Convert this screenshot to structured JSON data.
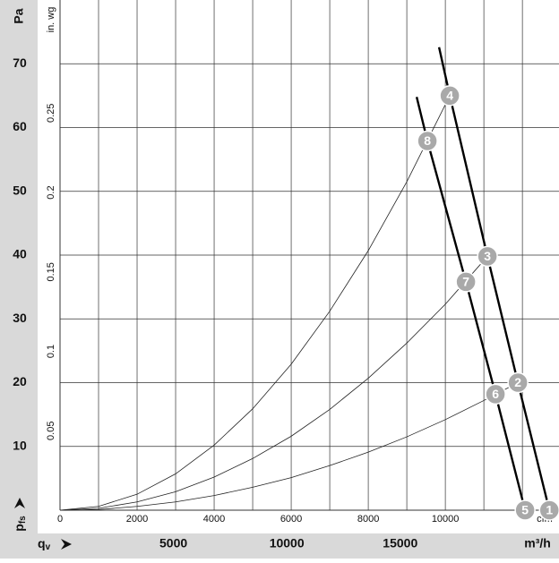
{
  "chart_data": {
    "type": "line",
    "y_label": "Pa",
    "y2_label": "in. wg",
    "y_symbol": "p",
    "y_symbol_sub": "fs",
    "x_symbol": "q",
    "x_symbol_sub": "v",
    "x_label": "cfm",
    "x2_label": "m³/h",
    "xlim": [
      0,
      12950
    ],
    "xticks": [
      0,
      2000,
      4000,
      6000,
      8000,
      10000
    ],
    "xgrid": [
      1000,
      2000,
      3000,
      4000,
      5000,
      6000,
      7000,
      8000,
      9000,
      10000,
      11000,
      12000
    ],
    "x2lim": [
      0,
      22000
    ],
    "x2ticks": [
      5000,
      10000,
      15000
    ],
    "ylim": [
      0,
      80
    ],
    "yticks": [
      10,
      20,
      30,
      40,
      50,
      60,
      70
    ],
    "y2lim": [
      0,
      0.3212
    ],
    "y2ticks": [
      0.05,
      0.1,
      0.15,
      0.2,
      0.25
    ],
    "grid": true,
    "series": [
      {
        "name": null,
        "role": "fan",
        "color": "#000000",
        "x": [
          9837,
          10116,
          11093,
          11884,
          12700
        ],
        "values": [
          72.6,
          65,
          39.8,
          20,
          0
        ]
      },
      {
        "name": null,
        "role": "fan",
        "color": "#000000",
        "x": [
          9256,
          9535,
          10535,
          11302,
          12070
        ],
        "values": [
          64.8,
          57.9,
          35.8,
          18.2,
          0
        ]
      },
      {
        "name": null,
        "role": "system",
        "color": "#222222",
        "x": [
          0,
          1000,
          2000,
          3000,
          4000,
          5000,
          6000,
          7000,
          8000,
          9000,
          10000,
          10116
        ],
        "values": [
          0,
          0.6,
          2.5,
          5.7,
          10.2,
          15.9,
          22.9,
          31.2,
          40.7,
          51.5,
          63.6,
          65
        ]
      },
      {
        "name": null,
        "role": "system",
        "color": "#222222",
        "x": [
          0,
          1000,
          2000,
          3000,
          4000,
          5000,
          6000,
          7000,
          8000,
          9000,
          10000,
          11093
        ],
        "values": [
          0,
          0.3,
          1.3,
          2.9,
          5.2,
          8.1,
          11.6,
          15.8,
          20.7,
          26.2,
          32.3,
          39.8
        ]
      },
      {
        "name": null,
        "role": "system",
        "color": "#222222",
        "x": [
          0,
          1000,
          2000,
          3000,
          4000,
          5000,
          6000,
          7000,
          8000,
          9000,
          10000,
          11000,
          11884
        ],
        "values": [
          0,
          0.1,
          0.6,
          1.3,
          2.3,
          3.6,
          5.1,
          7,
          9.1,
          11.5,
          14.2,
          17.2,
          20
        ]
      }
    ],
    "points": [
      {
        "label": "1",
        "x": 12700,
        "y": 0
      },
      {
        "label": "2",
        "x": 11884,
        "y": 20
      },
      {
        "label": "3",
        "x": 11093,
        "y": 39.8
      },
      {
        "label": "4",
        "x": 10116,
        "y": 65
      },
      {
        "label": "5",
        "x": 12070,
        "y": 0
      },
      {
        "label": "6",
        "x": 11302,
        "y": 18.2
      },
      {
        "label": "7",
        "x": 10535,
        "y": 35.8
      },
      {
        "label": "8",
        "x": 9535,
        "y": 57.9
      }
    ]
  }
}
